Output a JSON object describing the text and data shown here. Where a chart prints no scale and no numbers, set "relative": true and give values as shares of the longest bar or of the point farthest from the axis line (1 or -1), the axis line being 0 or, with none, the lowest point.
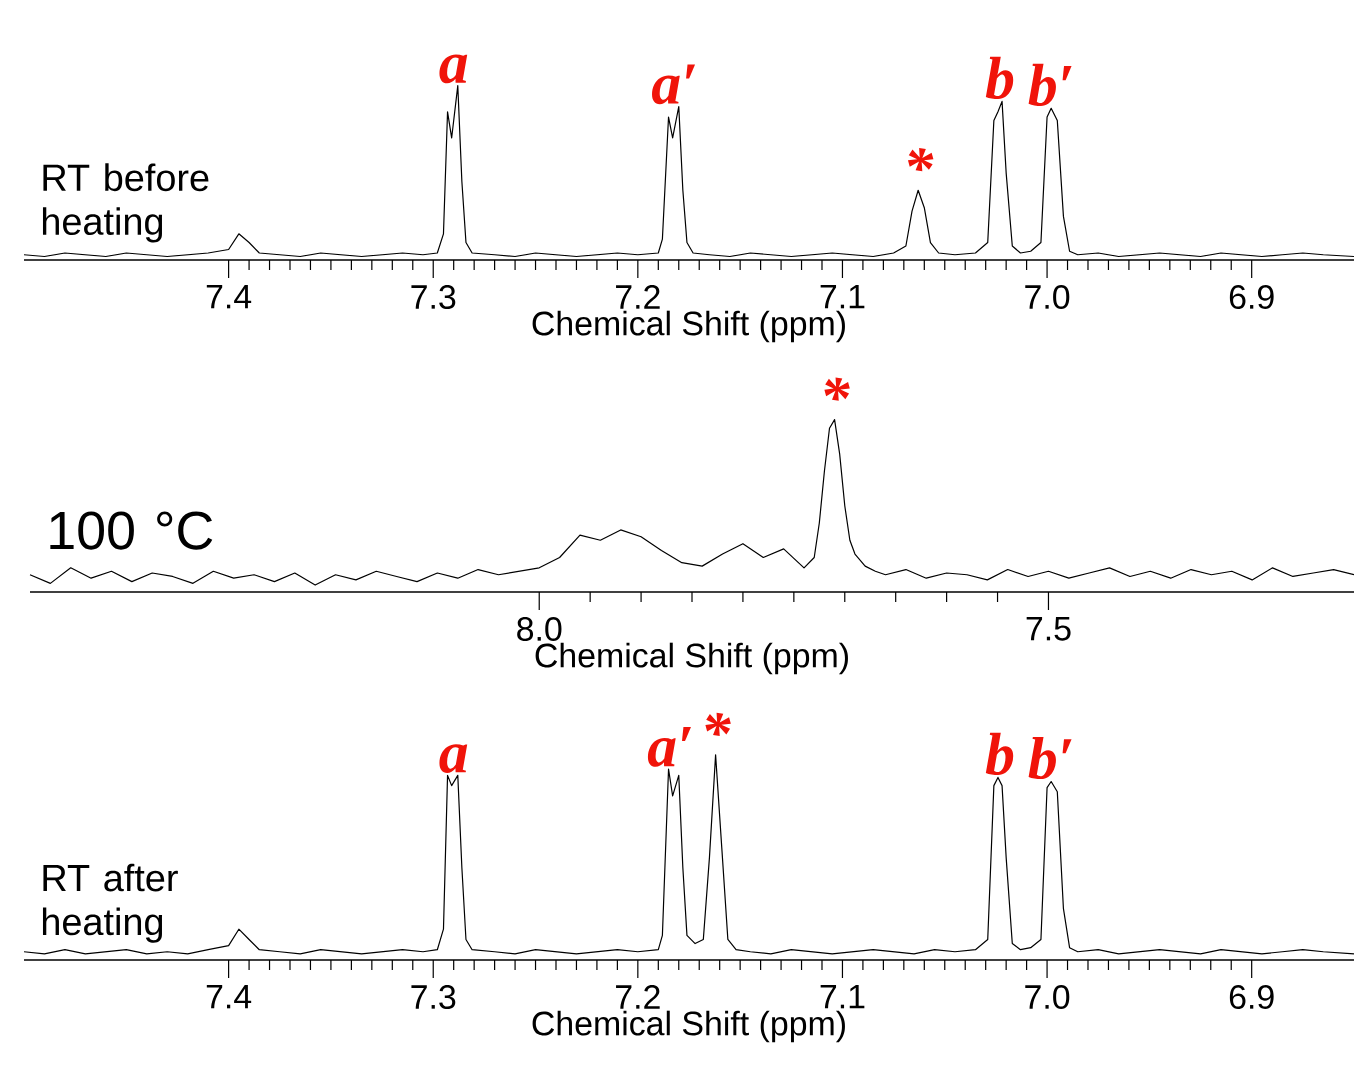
{
  "chart_data": [
    {
      "type": "line",
      "relative": true,
      "title": "RT before heating",
      "xlabel": "Chemical Shift (ppm)",
      "xlim": [
        7.5,
        6.85
      ],
      "xticks": [
        {
          "value": 7.4,
          "label": "7.4"
        },
        {
          "value": 7.3,
          "label": "7.3"
        },
        {
          "value": 7.2,
          "label": "7.2"
        },
        {
          "value": 7.1,
          "label": "7.1"
        },
        {
          "value": 7,
          "label": "7.0"
        },
        {
          "value": 6.9,
          "label": "6.9"
        }
      ],
      "x": [
        7.5,
        7.49,
        7.48,
        7.47,
        7.46,
        7.45,
        7.44,
        7.43,
        7.42,
        7.41,
        7.4,
        7.395,
        7.39,
        7.385,
        7.375,
        7.365,
        7.355,
        7.345,
        7.335,
        7.325,
        7.315,
        7.305,
        7.298,
        7.295,
        7.293,
        7.291,
        7.288,
        7.286,
        7.284,
        7.281,
        7.27,
        7.26,
        7.25,
        7.24,
        7.23,
        7.22,
        7.21,
        7.2,
        7.19,
        7.188,
        7.185,
        7.183,
        7.18,
        7.178,
        7.176,
        7.173,
        7.165,
        7.155,
        7.145,
        7.135,
        7.125,
        7.115,
        7.105,
        7.095,
        7.085,
        7.075,
        7.069,
        7.066,
        7.063,
        7.06,
        7.057,
        7.053,
        7.045,
        7.035,
        7.029,
        7.026,
        7.024,
        7.022,
        7.02,
        7.017,
        7.013,
        7.008,
        7.003,
        7.0,
        6.998,
        6.995,
        6.992,
        6.989,
        6.985,
        6.975,
        6.965,
        6.955,
        6.945,
        6.935,
        6.925,
        6.915,
        6.905,
        6.895,
        6.885,
        6.875,
        6.865,
        6.85
      ],
      "series": [
        {
          "color": "#000000",
          "values": [
            0.03,
            0.02,
            0.04,
            0.03,
            0.02,
            0.04,
            0.03,
            0.02,
            0.03,
            0.04,
            0.06,
            0.15,
            0.1,
            0.04,
            0.03,
            0.02,
            0.04,
            0.03,
            0.02,
            0.03,
            0.04,
            0.03,
            0.04,
            0.15,
            0.85,
            0.7,
            1.0,
            0.45,
            0.1,
            0.04,
            0.03,
            0.02,
            0.04,
            0.03,
            0.02,
            0.03,
            0.04,
            0.03,
            0.04,
            0.12,
            0.82,
            0.7,
            0.88,
            0.4,
            0.1,
            0.04,
            0.03,
            0.02,
            0.04,
            0.03,
            0.02,
            0.03,
            0.04,
            0.03,
            0.02,
            0.04,
            0.08,
            0.28,
            0.4,
            0.3,
            0.1,
            0.04,
            0.03,
            0.04,
            0.1,
            0.8,
            0.85,
            0.91,
            0.5,
            0.08,
            0.04,
            0.05,
            0.1,
            0.82,
            0.87,
            0.8,
            0.25,
            0.05,
            0.03,
            0.04,
            0.02,
            0.03,
            0.04,
            0.03,
            0.02,
            0.04,
            0.03,
            0.02,
            0.03,
            0.04,
            0.03,
            0.02
          ]
        }
      ],
      "annotations": [
        {
          "text": "a",
          "x": 7.29,
          "y": 1.0
        },
        {
          "text": "a′",
          "x": 7.182,
          "y": 0.88
        },
        {
          "text": "*",
          "x": 7.063,
          "y": 0.4
        },
        {
          "text": "b",
          "x": 7.023,
          "y": 0.91
        },
        {
          "text": "b′",
          "x": 6.998,
          "y": 0.87
        }
      ]
    },
    {
      "type": "line",
      "relative": true,
      "title": "100 °C",
      "xlabel": "Chemical Shift (ppm)",
      "xlim": [
        8.5,
        7.2
      ],
      "xticks": [
        {
          "value": 8,
          "label": "8.0"
        },
        {
          "value": 7.5,
          "label": "7.5"
        }
      ],
      "x": [
        8.5,
        8.48,
        8.46,
        8.44,
        8.42,
        8.4,
        8.38,
        8.36,
        8.34,
        8.32,
        8.3,
        8.28,
        8.26,
        8.24,
        8.22,
        8.2,
        8.18,
        8.16,
        8.14,
        8.12,
        8.1,
        8.08,
        8.06,
        8.04,
        8.02,
        8.0,
        7.98,
        7.96,
        7.94,
        7.92,
        7.9,
        7.88,
        7.86,
        7.84,
        7.82,
        7.8,
        7.78,
        7.76,
        7.74,
        7.73,
        7.725,
        7.72,
        7.715,
        7.71,
        7.705,
        7.7,
        7.695,
        7.69,
        7.68,
        7.67,
        7.66,
        7.64,
        7.62,
        7.6,
        7.58,
        7.56,
        7.54,
        7.52,
        7.5,
        7.48,
        7.46,
        7.44,
        7.42,
        7.4,
        7.38,
        7.36,
        7.34,
        7.32,
        7.3,
        7.28,
        7.26,
        7.24,
        7.22,
        7.2
      ],
      "series": [
        {
          "color": "#000000",
          "values": [
            0.1,
            0.05,
            0.14,
            0.08,
            0.12,
            0.06,
            0.11,
            0.09,
            0.05,
            0.12,
            0.08,
            0.1,
            0.06,
            0.11,
            0.04,
            0.1,
            0.07,
            0.12,
            0.09,
            0.06,
            0.11,
            0.08,
            0.13,
            0.1,
            0.12,
            0.14,
            0.2,
            0.33,
            0.3,
            0.36,
            0.32,
            0.24,
            0.17,
            0.15,
            0.22,
            0.28,
            0.2,
            0.25,
            0.14,
            0.2,
            0.4,
            0.7,
            0.95,
            1.0,
            0.8,
            0.5,
            0.3,
            0.22,
            0.15,
            0.12,
            0.1,
            0.13,
            0.08,
            0.11,
            0.1,
            0.07,
            0.13,
            0.09,
            0.12,
            0.08,
            0.11,
            0.14,
            0.09,
            0.12,
            0.08,
            0.13,
            0.1,
            0.12,
            0.07,
            0.14,
            0.09,
            0.11,
            0.13,
            0.1
          ]
        }
      ],
      "annotations": [
        {
          "text": "*",
          "x": 7.71,
          "y": 1.0
        }
      ]
    },
    {
      "type": "line",
      "relative": true,
      "title": "RT after heating",
      "xlabel": "Chemical Shift (ppm)",
      "xlim": [
        7.5,
        6.85
      ],
      "xticks": [
        {
          "value": 7.4,
          "label": "7.4"
        },
        {
          "value": 7.3,
          "label": "7.3"
        },
        {
          "value": 7.2,
          "label": "7.2"
        },
        {
          "value": 7.1,
          "label": "7.1"
        },
        {
          "value": 7,
          "label": "7.0"
        },
        {
          "value": 6.9,
          "label": "6.9"
        }
      ],
      "x": [
        7.5,
        7.49,
        7.48,
        7.47,
        7.46,
        7.45,
        7.44,
        7.43,
        7.42,
        7.41,
        7.4,
        7.395,
        7.39,
        7.385,
        7.375,
        7.365,
        7.355,
        7.345,
        7.335,
        7.325,
        7.315,
        7.305,
        7.298,
        7.295,
        7.293,
        7.291,
        7.288,
        7.286,
        7.284,
        7.281,
        7.27,
        7.26,
        7.25,
        7.24,
        7.23,
        7.22,
        7.21,
        7.2,
        7.19,
        7.188,
        7.185,
        7.183,
        7.18,
        7.178,
        7.176,
        7.172,
        7.168,
        7.165,
        7.162,
        7.159,
        7.156,
        7.152,
        7.145,
        7.135,
        7.125,
        7.115,
        7.105,
        7.095,
        7.085,
        7.075,
        7.065,
        7.055,
        7.045,
        7.035,
        7.029,
        7.026,
        7.024,
        7.022,
        7.02,
        7.017,
        7.013,
        7.008,
        7.003,
        7.0,
        6.998,
        6.995,
        6.992,
        6.989,
        6.985,
        6.975,
        6.965,
        6.955,
        6.945,
        6.935,
        6.925,
        6.915,
        6.905,
        6.895,
        6.885,
        6.875,
        6.865,
        6.85
      ],
      "series": [
        {
          "color": "#000000",
          "values": [
            0.04,
            0.03,
            0.05,
            0.03,
            0.04,
            0.05,
            0.03,
            0.04,
            0.03,
            0.05,
            0.07,
            0.15,
            0.1,
            0.05,
            0.04,
            0.03,
            0.05,
            0.04,
            0.03,
            0.04,
            0.05,
            0.04,
            0.05,
            0.15,
            0.9,
            0.85,
            0.9,
            0.45,
            0.1,
            0.05,
            0.04,
            0.03,
            0.05,
            0.04,
            0.03,
            0.04,
            0.05,
            0.04,
            0.05,
            0.12,
            0.93,
            0.8,
            0.9,
            0.45,
            0.12,
            0.08,
            0.1,
            0.5,
            1.0,
            0.55,
            0.1,
            0.05,
            0.04,
            0.03,
            0.05,
            0.04,
            0.03,
            0.04,
            0.05,
            0.04,
            0.03,
            0.05,
            0.04,
            0.05,
            0.1,
            0.85,
            0.89,
            0.85,
            0.5,
            0.08,
            0.05,
            0.06,
            0.1,
            0.84,
            0.87,
            0.82,
            0.25,
            0.06,
            0.04,
            0.05,
            0.03,
            0.04,
            0.05,
            0.04,
            0.03,
            0.05,
            0.04,
            0.03,
            0.04,
            0.05,
            0.04,
            0.03
          ]
        }
      ],
      "annotations": [
        {
          "text": "a",
          "x": 7.29,
          "y": 0.9
        },
        {
          "text": "a′",
          "x": 7.184,
          "y": 0.93
        },
        {
          "text": "*",
          "x": 7.162,
          "y": 1.0
        },
        {
          "text": "b",
          "x": 7.023,
          "y": 0.89
        },
        {
          "text": "b′",
          "x": 6.998,
          "y": 0.87
        }
      ]
    }
  ]
}
